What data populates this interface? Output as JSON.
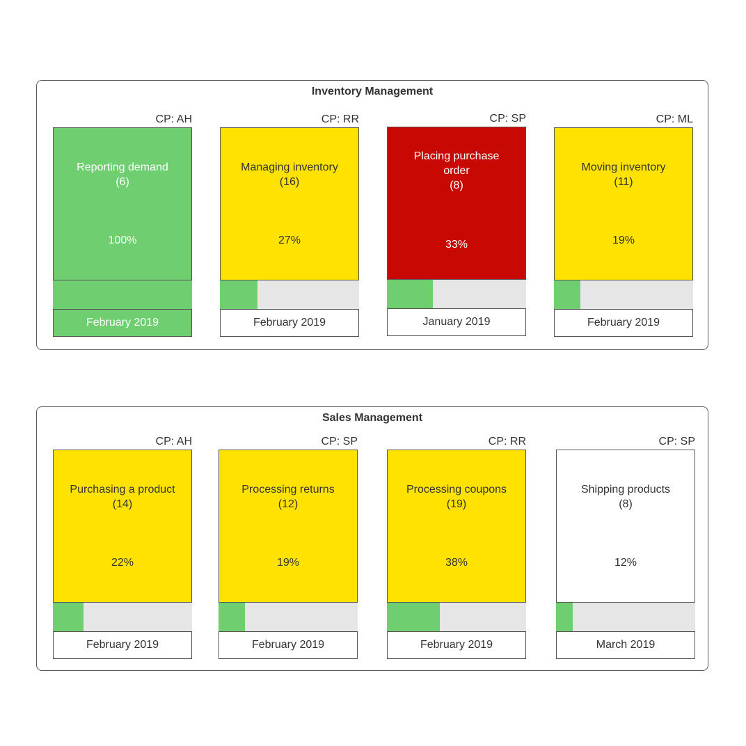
{
  "colors": {
    "green": "#6fce6f",
    "yellow": "#ffe200",
    "red": "#c80803",
    "white": "#ffffff",
    "bar_bg": "#e6e6e6"
  },
  "sections": [
    {
      "title": "Inventory Management",
      "cards": [
        {
          "cp": "CP: AH",
          "name": "Reporting demand",
          "count": "(6)",
          "percent_label": "100%",
          "progress": 100,
          "date": "February 2019",
          "status": "green",
          "date_status": "green"
        },
        {
          "cp": "CP: RR",
          "name": "Managing inventory",
          "count": "(16)",
          "percent_label": "27%",
          "progress": 27,
          "date": "February 2019",
          "status": "yellow",
          "date_status": "white"
        },
        {
          "cp": "CP: SP",
          "name": "Placing purchase order",
          "count": "(8)",
          "percent_label": "33%",
          "progress": 33,
          "date": "January 2019",
          "status": "red",
          "date_status": "white"
        },
        {
          "cp": "CP: ML",
          "name": "Moving inventory",
          "count": "(11)",
          "percent_label": "19%",
          "progress": 19,
          "date": "February 2019",
          "status": "yellow",
          "date_status": "white"
        }
      ]
    },
    {
      "title": "Sales Management",
      "cards": [
        {
          "cp": "CP: AH",
          "name": "Purchasing a product",
          "count": "(14)",
          "percent_label": "22%",
          "progress": 22,
          "date": "February 2019",
          "status": "yellow",
          "date_status": "white"
        },
        {
          "cp": "CP: SP",
          "name": "Processing returns",
          "count": "(12)",
          "percent_label": "19%",
          "progress": 19,
          "date": "February 2019",
          "status": "yellow",
          "date_status": "white"
        },
        {
          "cp": "CP: RR",
          "name": "Processing coupons",
          "count": "(19)",
          "percent_label": "38%",
          "progress": 38,
          "date": "February 2019",
          "status": "yellow",
          "date_status": "white"
        },
        {
          "cp": "CP: SP",
          "name": "Shipping products",
          "count": "(8)",
          "percent_label": "12%",
          "progress": 12,
          "date": "March 2019",
          "status": "white",
          "date_status": "white"
        }
      ]
    }
  ]
}
